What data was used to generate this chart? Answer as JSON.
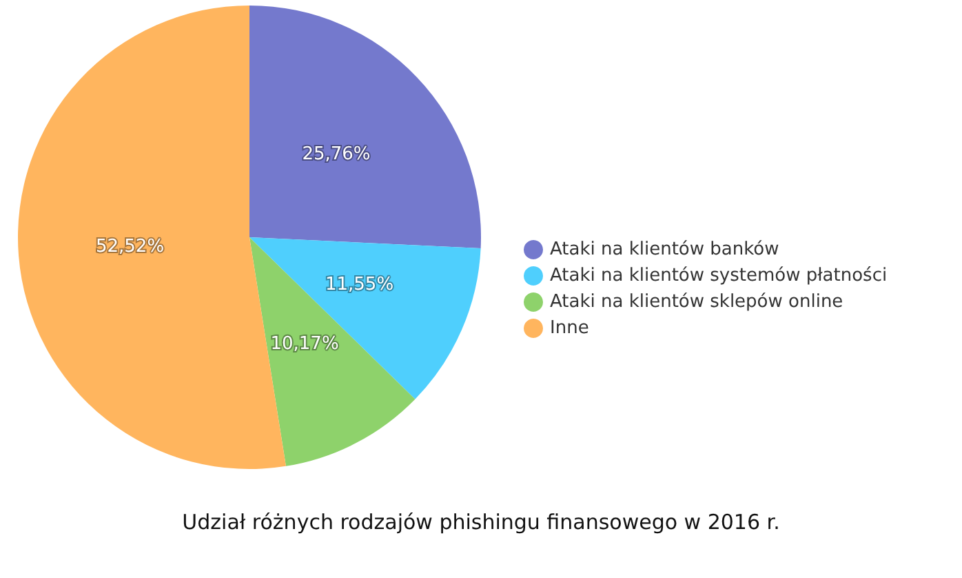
{
  "chart_data": {
    "type": "pie",
    "title": "Udział różnych rodzajów phishingu finansowego w 2016 r.",
    "categories": [
      "Ataki na klientów banków",
      "Ataki na klientów systemów płatności",
      "Ataki na klientów sklepów online",
      "Inne"
    ],
    "values": [
      25.76,
      11.55,
      10.17,
      52.52
    ],
    "colors": [
      "#7479cd",
      "#4fcffd",
      "#8ed26b",
      "#ffb55e"
    ],
    "value_labels": [
      "25,76%",
      "11,55%",
      "10,17%",
      "52,52%"
    ],
    "legend": "right"
  }
}
